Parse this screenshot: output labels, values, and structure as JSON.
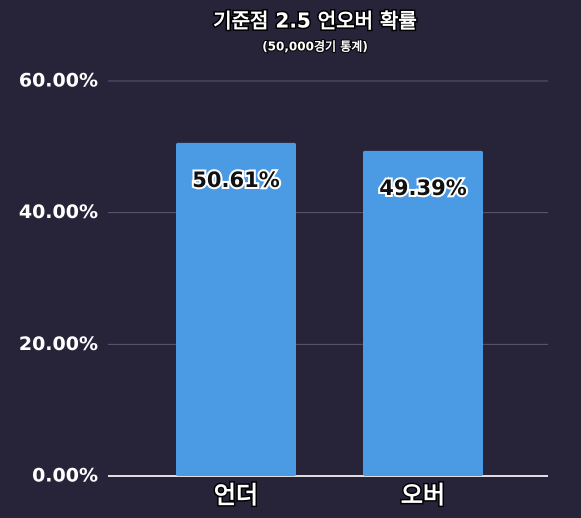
{
  "chart_data": {
    "type": "bar",
    "title": "기준점 2.5 언오버 확률",
    "subtitle": "(50,000경기 통계)",
    "categories": [
      "언더",
      "오버"
    ],
    "values": [
      50.61,
      49.39
    ],
    "value_labels": [
      "50.61%",
      "49.39%"
    ],
    "color": "#4a9be3",
    "ylim": [
      0,
      60
    ],
    "yticks": [
      {
        "value": 0,
        "label": "0.00%"
      },
      {
        "value": 20,
        "label": "20.00%"
      },
      {
        "value": 40,
        "label": "40.00%"
      },
      {
        "value": 60,
        "label": "60.00%"
      }
    ],
    "grid": true
  }
}
